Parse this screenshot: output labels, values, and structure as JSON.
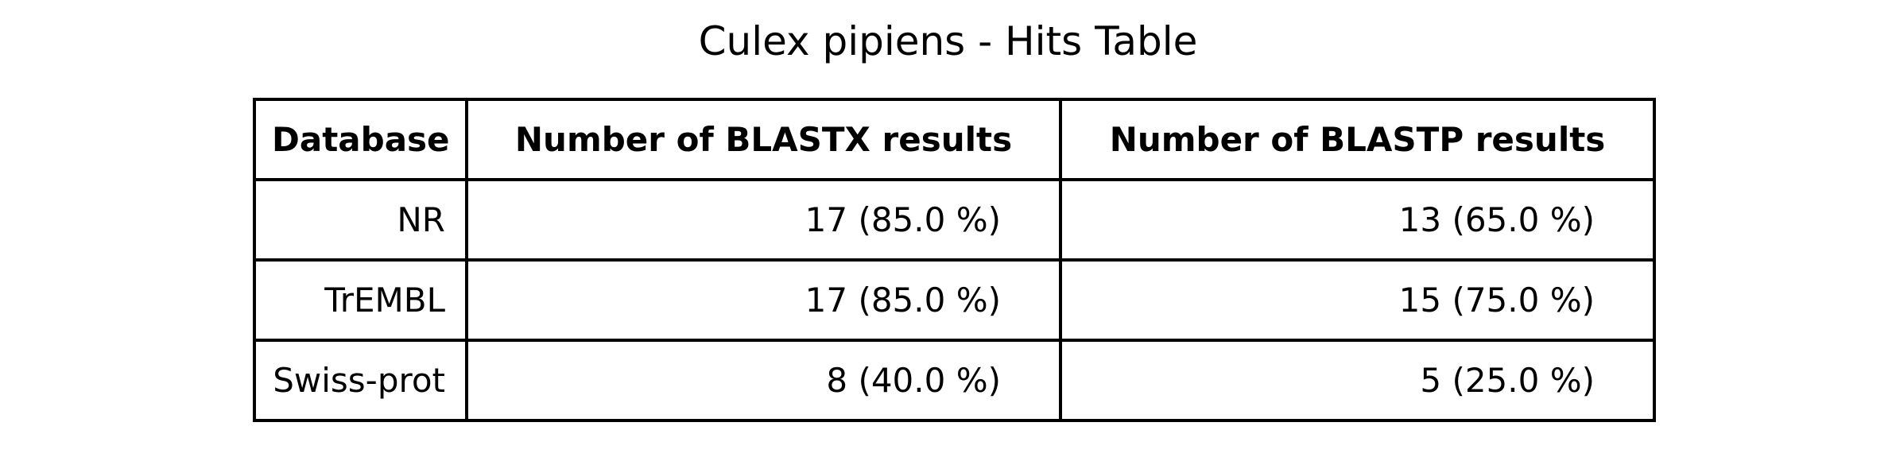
{
  "chart_data": {
    "type": "table",
    "title": "Culex pipiens - Hits Table",
    "columns": [
      "Database",
      "Number of BLASTX results",
      "Number of BLASTP results"
    ],
    "rows": [
      [
        "NR",
        "17 (85.0 %)",
        "13 (65.0 %)"
      ],
      [
        "TrEMBL",
        "17 (85.0 %)",
        "15 (75.0 %)"
      ],
      [
        "Swiss-prot",
        "8 (40.0 %)",
        "5 (25.0 %)"
      ]
    ]
  }
}
